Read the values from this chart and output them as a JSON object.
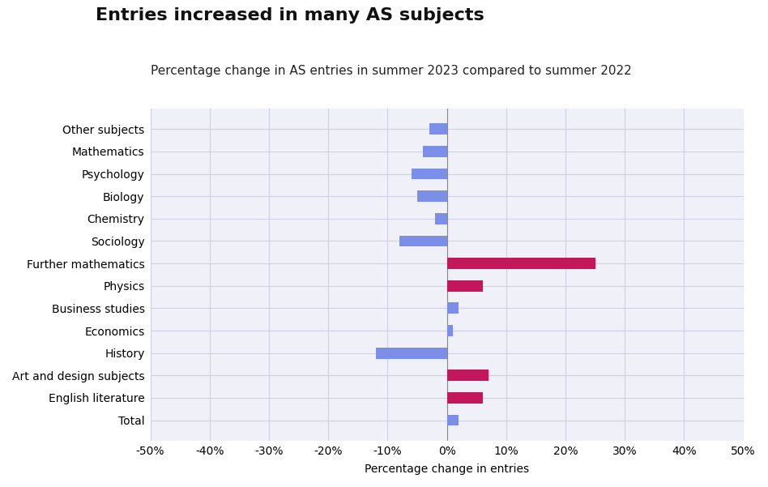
{
  "title": "Entries increased in many AS subjects",
  "subtitle": "Percentage change in AS entries in summer 2023 compared to summer 2022",
  "xlabel": "Percentage change in entries",
  "categories": [
    "Other subjects",
    "Mathematics",
    "Psychology",
    "Biology",
    "Chemistry",
    "Sociology",
    "Further mathematics",
    "Physics",
    "Business studies",
    "Economics",
    "History",
    "Art and design subjects",
    "English literature",
    "Total"
  ],
  "values": [
    -3,
    -4,
    -6,
    -5,
    -2,
    -8,
    25,
    6,
    2,
    1,
    -12,
    7,
    6,
    2
  ],
  "colors": [
    "#7B8FE8",
    "#7B8FE8",
    "#7B8FE8",
    "#7B8FE8",
    "#7B8FE8",
    "#7B8FE8",
    "#C2185B",
    "#C2185B",
    "#7B8FE8",
    "#7B8FE8",
    "#7B8FE8",
    "#C2185B",
    "#C2185B",
    "#7B8FE8"
  ],
  "xlim": [
    -50,
    50
  ],
  "xticks": [
    -50,
    -40,
    -30,
    -20,
    -10,
    0,
    10,
    20,
    30,
    40,
    50
  ],
  "xtick_labels": [
    "-50%",
    "-40%",
    "-30%",
    "-20%",
    "-10%",
    "0%",
    "10%",
    "20%",
    "30%",
    "40%",
    "50%"
  ],
  "background_color": "#FFFFFF",
  "plot_bg_color": "#F0F0F8",
  "grid_color": "#D0D0E0",
  "title_fontsize": 16,
  "subtitle_fontsize": 11,
  "label_fontsize": 10,
  "tick_fontsize": 10,
  "bar_height": 0.5
}
